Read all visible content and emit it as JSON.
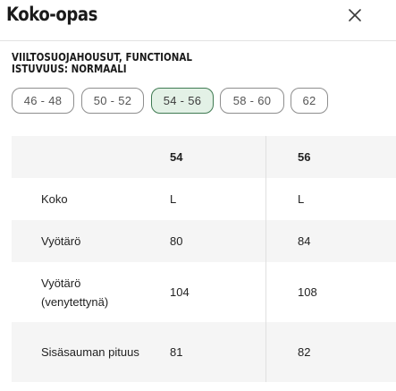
{
  "title": "Koko-opas",
  "icons": {
    "close": "close-icon"
  },
  "product": {
    "name": "VIILTOSUOJAHOUSUT, FUNCTIONAL",
    "fit": "ISTUVUUS: NORMAALI"
  },
  "size_tabs": [
    {
      "label": "46 - 48",
      "selected": false
    },
    {
      "label": "50 - 52",
      "selected": false
    },
    {
      "label": "54 - 56",
      "selected": true
    },
    {
      "label": "58 - 60",
      "selected": false
    },
    {
      "label": "62",
      "selected": false
    }
  ],
  "table": {
    "columns": [
      "54",
      "56"
    ],
    "rows": [
      {
        "label": "Koko",
        "values": [
          "L",
          "L"
        ]
      },
      {
        "label": "Vyötärö",
        "values": [
          "80",
          "84"
        ]
      },
      {
        "label": "Vyötärö (venytettynä)",
        "values": [
          "104",
          "108"
        ]
      },
      {
        "label": "Sisäsauman pituus",
        "values": [
          "81",
          "82"
        ]
      }
    ]
  },
  "colors": {
    "selected_bg": "#e3f1e6",
    "selected_border": "#3f7a52",
    "row_shade": "#f5f5f5"
  }
}
